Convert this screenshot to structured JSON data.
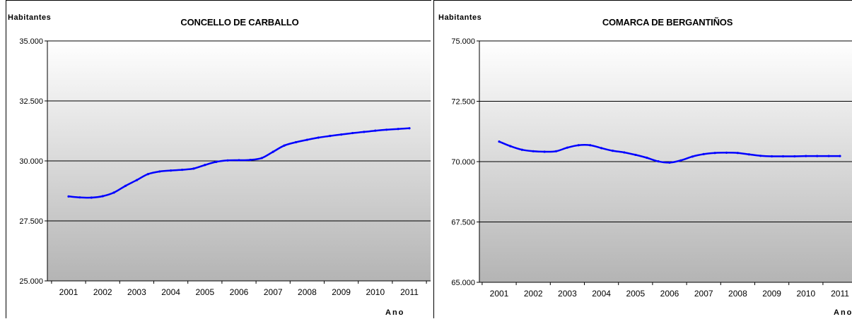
{
  "chart_data": [
    {
      "type": "line",
      "title": "CONCELLO DE CARBALLO",
      "ylabel": "Habitantes",
      "xlabel": "Ano",
      "categories": [
        "2001",
        "2002",
        "2003",
        "2004",
        "2005",
        "2006",
        "2007",
        "2008",
        "2009",
        "2010",
        "2011"
      ],
      "x": [
        2001.0,
        2001.33,
        2001.67,
        2002.0,
        2002.33,
        2002.67,
        2003.0,
        2003.33,
        2003.67,
        2004.0,
        2004.33,
        2004.67,
        2005.0,
        2005.33,
        2005.67,
        2006.0,
        2006.33,
        2006.67,
        2007.0,
        2007.33,
        2007.67,
        2008.0,
        2008.33,
        2008.67,
        2009.0,
        2009.33,
        2009.67,
        2010.0,
        2010.33,
        2010.67,
        2011.0
      ],
      "y": [
        28520,
        28480,
        28470,
        28530,
        28680,
        28960,
        29200,
        29450,
        29560,
        29600,
        29630,
        29680,
        29830,
        29960,
        30020,
        30030,
        30040,
        30120,
        30380,
        30640,
        30780,
        30880,
        30970,
        31040,
        31100,
        31160,
        31210,
        31260,
        31300,
        31330,
        31360
      ],
      "series": [
        {
          "color": "#0000ff"
        }
      ],
      "ylim": [
        25000,
        35000
      ],
      "yticks": [
        25000,
        27500,
        30000,
        32500,
        35000
      ],
      "ytick_labels": [
        "25.000",
        "27.500",
        "30.000",
        "32.500",
        "35.000"
      ],
      "grid": "horizontal",
      "legend": "none"
    },
    {
      "type": "line",
      "title": "COMARCA DE BERGANTIÑOS",
      "ylabel": "Habitantes",
      "xlabel": "Ano",
      "categories": [
        "2001",
        "2002",
        "2003",
        "2004",
        "2005",
        "2006",
        "2007",
        "2008",
        "2009",
        "2010",
        "2011"
      ],
      "x": [
        2001.0,
        2001.33,
        2001.67,
        2002.0,
        2002.33,
        2002.67,
        2003.0,
        2003.33,
        2003.67,
        2004.0,
        2004.33,
        2004.67,
        2005.0,
        2005.33,
        2005.67,
        2006.0,
        2006.33,
        2006.67,
        2007.0,
        2007.33,
        2007.67,
        2008.0,
        2008.33,
        2008.67,
        2009.0,
        2009.33,
        2009.67,
        2010.0,
        2010.33,
        2010.67,
        2011.0
      ],
      "y": [
        70830,
        70640,
        70490,
        70430,
        70410,
        70430,
        70580,
        70680,
        70680,
        70560,
        70450,
        70380,
        70280,
        70160,
        70010,
        69960,
        70050,
        70210,
        70310,
        70360,
        70370,
        70360,
        70300,
        70240,
        70220,
        70220,
        70220,
        70230,
        70230,
        70230,
        70230
      ],
      "series": [
        {
          "color": "#0000ff"
        }
      ],
      "ylim": [
        65000,
        75000
      ],
      "yticks": [
        65000,
        67500,
        70000,
        72500,
        75000
      ],
      "ytick_labels": [
        "65.000",
        "67.500",
        "70.000",
        "72.500",
        "75.000"
      ],
      "grid": "horizontal",
      "legend": "none"
    }
  ]
}
